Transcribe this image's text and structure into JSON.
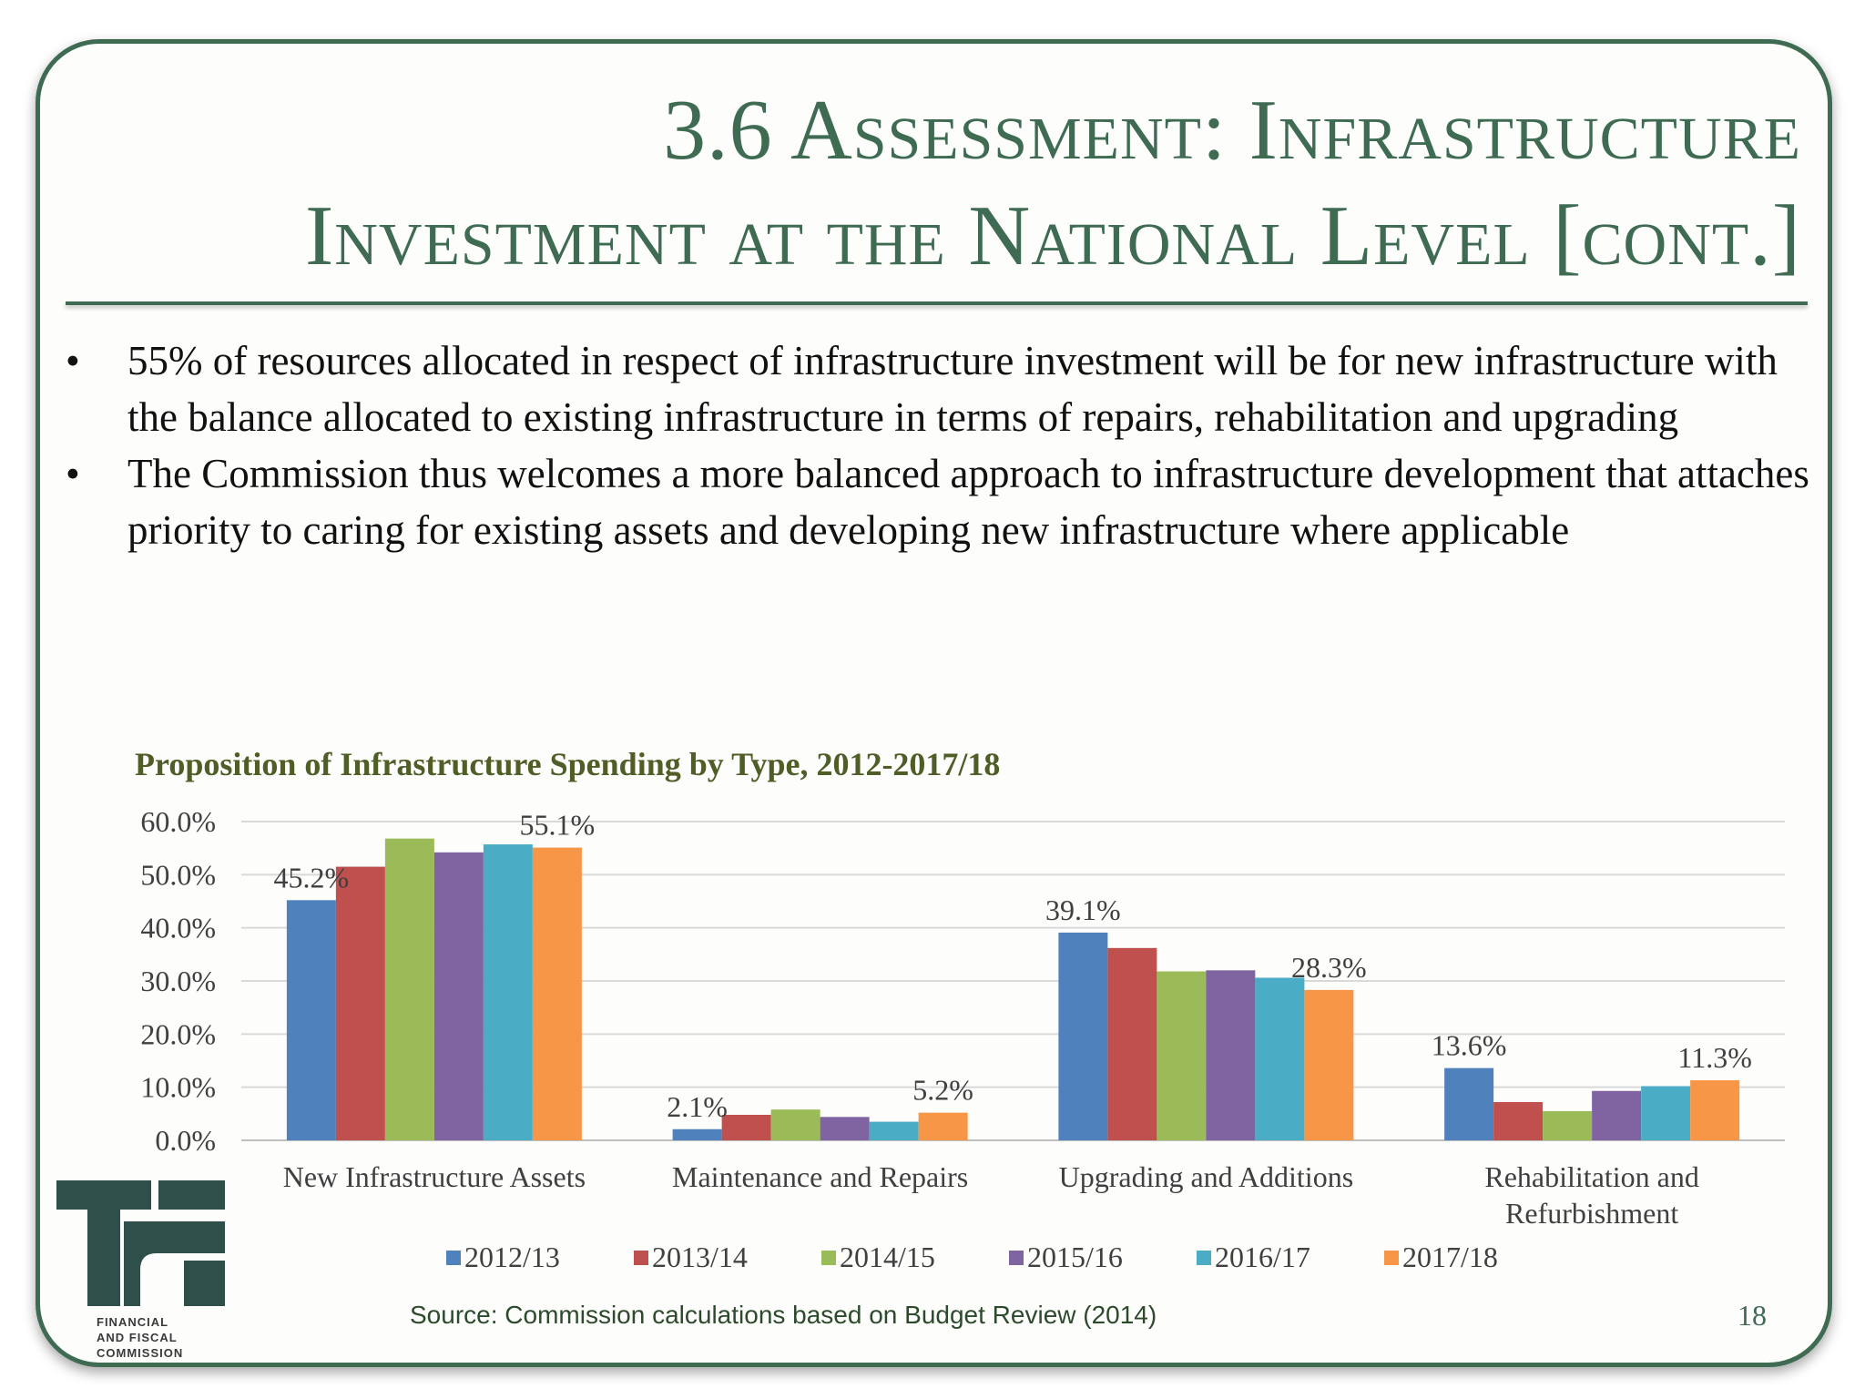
{
  "slide": {
    "title_line1": "3.6 Assessment: Infrastructure",
    "title_line2": "Investment at the National Level [cont.]",
    "bullets": [
      "55% of resources allocated in respect of infrastructure investment will be for new infrastructure with the balance allocated to existing infrastructure in terms of repairs, rehabilitation and  upgrading",
      "The Commission thus welcomes a more balanced approach to infrastructure development that attaches priority to caring for existing assets and developing new infrastructure where applicable"
    ],
    "source": "Source: Commission calculations based on Budget Review (2014)",
    "page_number": "18",
    "logo_text": [
      "FINANCIAL",
      "AND FISCAL",
      "COMMISSION"
    ]
  },
  "colors": {
    "frame": "#3e6b52",
    "chart_title": "#4e5e26",
    "series": [
      "#4f81bd",
      "#c0504d",
      "#9bbb59",
      "#8064a2",
      "#4bacc6",
      "#f79646"
    ]
  },
  "chart_data": {
    "type": "bar",
    "title": "Proposition of Infrastructure Spending by Type, 2012-2017/18",
    "categories": [
      "New Infrastructure Assets",
      "Maintenance and Repairs",
      "Upgrading and Additions",
      "Rehabilitation and Refurbishment"
    ],
    "category_lines": [
      [
        "New Infrastructure Assets"
      ],
      [
        "Maintenance and Repairs"
      ],
      [
        "Upgrading and Additions"
      ],
      [
        "Rehabilitation and",
        "Refurbishment"
      ]
    ],
    "series": [
      {
        "name": "2012/13",
        "values": [
          45.2,
          2.1,
          39.1,
          13.6
        ]
      },
      {
        "name": "2013/14",
        "values": [
          51.5,
          4.8,
          36.2,
          7.2
        ]
      },
      {
        "name": "2014/15",
        "values": [
          56.8,
          5.8,
          31.8,
          5.5
        ]
      },
      {
        "name": "2015/16",
        "values": [
          54.2,
          4.4,
          32.0,
          9.3
        ]
      },
      {
        "name": "2016/17",
        "values": [
          55.7,
          3.5,
          30.6,
          10.2
        ]
      },
      {
        "name": "2017/18",
        "values": [
          55.1,
          5.2,
          28.3,
          11.3
        ]
      }
    ],
    "data_labels": [
      {
        "series": 0,
        "category": 0,
        "text": "45.2%"
      },
      {
        "series": 5,
        "category": 0,
        "text": "55.1%"
      },
      {
        "series": 0,
        "category": 1,
        "text": "2.1%"
      },
      {
        "series": 5,
        "category": 1,
        "text": "5.2%"
      },
      {
        "series": 0,
        "category": 2,
        "text": "39.1%"
      },
      {
        "series": 5,
        "category": 2,
        "text": "28.3%"
      },
      {
        "series": 0,
        "category": 3,
        "text": "13.6%"
      },
      {
        "series": 5,
        "category": 3,
        "text": "11.3%"
      }
    ],
    "y_ticks": [
      "0.0%",
      "10.0%",
      "20.0%",
      "30.0%",
      "40.0%",
      "50.0%",
      "60.0%"
    ],
    "ylim": [
      0,
      60
    ],
    "grid": true,
    "legend_position": "bottom"
  }
}
